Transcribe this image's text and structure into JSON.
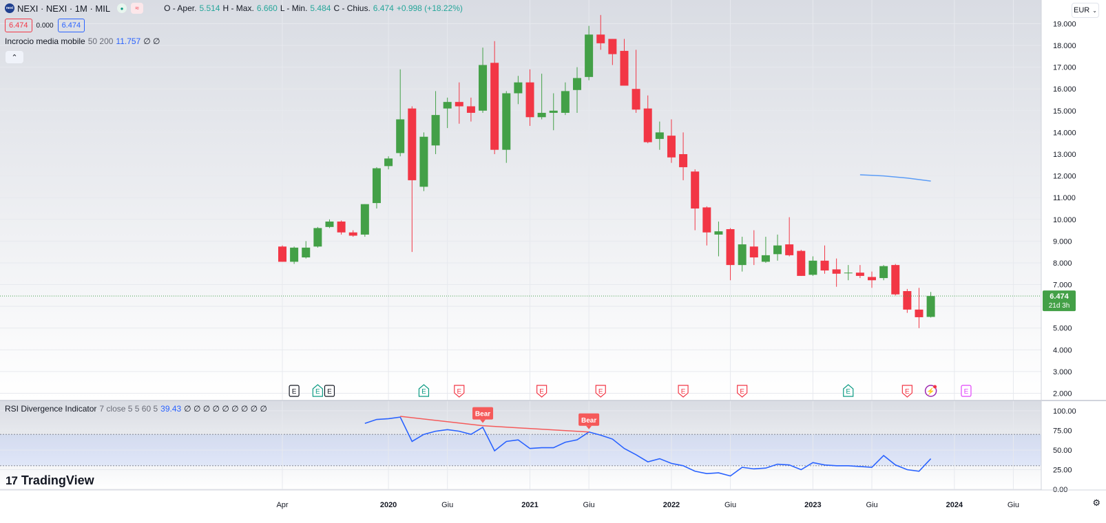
{
  "header": {
    "symbol_logo": "nexi",
    "title": "NEXI · NEXI · 1M · MIL",
    "ohlc": {
      "o_label": "O - Aper.",
      "o_val": "5.514",
      "h_label": "H - Max.",
      "h_val": "6.660",
      "l_label": "L - Min.",
      "l_val": "5.484",
      "c_label": "C - Chius.",
      "c_val": "6.474",
      "change": "+0.998 (+18.22%)"
    },
    "prices": {
      "bid": "6.474",
      "spread": "0.000",
      "ask": "6.474"
    },
    "currency": "EUR"
  },
  "indicators": {
    "ma_cross": {
      "name": "Incrocio media mobile",
      "params": "50 200",
      "value": "11.757",
      "extra": "∅ ∅"
    },
    "rsi": {
      "name": "RSI Divergence Indicator",
      "params": "7 close 5 5 60 5",
      "value": "39.43",
      "extra": "∅ ∅ ∅ ∅ ∅ ∅ ∅ ∅ ∅"
    }
  },
  "colors": {
    "up": "#43a047",
    "down": "#f23645",
    "ma": "#5b9cf6",
    "rsi": "#2962ff",
    "bear": "#f55a5a",
    "grid": "#e7e9ee"
  },
  "price_axis": {
    "last_price": "6.474",
    "countdown": "21d 3h"
  },
  "tv_brand": "TradingView",
  "chart_data": {
    "type": "candlestick",
    "title": "NEXI · NEXI · 1M · MIL",
    "price_ylim": [
      1.7,
      19.9
    ],
    "price_ticks": [
      "2.000",
      "3.000",
      "4.000",
      "5.000",
      "6.000",
      "7.000",
      "8.000",
      "9.000",
      "10.000",
      "11.000",
      "12.000",
      "13.000",
      "14.000",
      "15.000",
      "16.000",
      "17.000",
      "18.000",
      "19.000"
    ],
    "x_ticks": [
      "Apr",
      "2020",
      "Giu",
      "2021",
      "Giu",
      "2022",
      "Giu",
      "2023",
      "Giu",
      "2024",
      "Giu"
    ],
    "x_ticks_bold": [
      "2020",
      "2021",
      "2022",
      "2023",
      "2024"
    ],
    "x_ticks_month": [
      0,
      9,
      14,
      21,
      26,
      33,
      38,
      45,
      50,
      57,
      62
    ],
    "candles": [
      {
        "m": 0,
        "o": 8.75,
        "h": 8.8,
        "l": 8.05,
        "c": 8.05
      },
      {
        "m": 1,
        "o": 8.05,
        "h": 8.75,
        "l": 7.95,
        "c": 8.7
      },
      {
        "m": 2,
        "o": 8.25,
        "h": 9.0,
        "l": 8.2,
        "c": 8.7
      },
      {
        "m": 3,
        "o": 8.75,
        "h": 9.65,
        "l": 8.7,
        "c": 9.6
      },
      {
        "m": 4,
        "o": 9.65,
        "h": 10.0,
        "l": 9.6,
        "c": 9.9
      },
      {
        "m": 5,
        "o": 9.9,
        "h": 9.95,
        "l": 9.3,
        "c": 9.4
      },
      {
        "m": 6,
        "o": 9.4,
        "h": 9.5,
        "l": 9.2,
        "c": 9.25
      },
      {
        "m": 7,
        "o": 9.3,
        "h": 10.7,
        "l": 9.2,
        "c": 10.7
      },
      {
        "m": 8,
        "o": 10.75,
        "h": 12.4,
        "l": 10.5,
        "c": 12.35
      },
      {
        "m": 9,
        "o": 12.45,
        "h": 12.9,
        "l": 12.3,
        "c": 12.8
      },
      {
        "m": 10,
        "o": 13.05,
        "h": 16.9,
        "l": 12.9,
        "c": 14.6
      },
      {
        "m": 11,
        "o": 15.1,
        "h": 15.2,
        "l": 8.5,
        "c": 11.8
      },
      {
        "m": 12,
        "o": 11.5,
        "h": 14.0,
        "l": 11.3,
        "c": 13.8
      },
      {
        "m": 13,
        "o": 13.4,
        "h": 15.9,
        "l": 13.0,
        "c": 14.8
      },
      {
        "m": 14,
        "o": 15.1,
        "h": 15.6,
        "l": 14.2,
        "c": 15.4
      },
      {
        "m": 15,
        "o": 15.4,
        "h": 16.3,
        "l": 14.4,
        "c": 15.2
      },
      {
        "m": 16,
        "o": 15.2,
        "h": 15.6,
        "l": 14.5,
        "c": 14.9
      },
      {
        "m": 17,
        "o": 15.0,
        "h": 17.9,
        "l": 14.9,
        "c": 17.1
      },
      {
        "m": 18,
        "o": 17.2,
        "h": 18.2,
        "l": 13.0,
        "c": 13.2
      },
      {
        "m": 19,
        "o": 13.2,
        "h": 15.9,
        "l": 12.6,
        "c": 15.8
      },
      {
        "m": 20,
        "o": 15.8,
        "h": 16.6,
        "l": 15.3,
        "c": 16.3
      },
      {
        "m": 21,
        "o": 16.3,
        "h": 16.9,
        "l": 14.3,
        "c": 14.7
      },
      {
        "m": 22,
        "o": 14.7,
        "h": 16.7,
        "l": 14.6,
        "c": 14.9
      },
      {
        "m": 23,
        "o": 14.9,
        "h": 15.8,
        "l": 14.1,
        "c": 15.0
      },
      {
        "m": 24,
        "o": 14.9,
        "h": 16.3,
        "l": 14.8,
        "c": 15.9
      },
      {
        "m": 25,
        "o": 15.95,
        "h": 17.0,
        "l": 14.9,
        "c": 16.5
      },
      {
        "m": 26,
        "o": 16.55,
        "h": 18.9,
        "l": 16.4,
        "c": 18.5
      },
      {
        "m": 27,
        "o": 18.5,
        "h": 19.4,
        "l": 17.8,
        "c": 18.1
      },
      {
        "m": 28,
        "o": 18.3,
        "h": 18.3,
        "l": 17.1,
        "c": 17.6
      },
      {
        "m": 29,
        "o": 17.75,
        "h": 18.3,
        "l": 16.2,
        "c": 16.15
      },
      {
        "m": 30,
        "o": 16.0,
        "h": 17.8,
        "l": 14.9,
        "c": 15.05
      },
      {
        "m": 31,
        "o": 15.1,
        "h": 15.7,
        "l": 13.5,
        "c": 13.55
      },
      {
        "m": 32,
        "o": 13.7,
        "h": 14.5,
        "l": 13.2,
        "c": 14.0
      },
      {
        "m": 33,
        "o": 13.85,
        "h": 14.6,
        "l": 12.6,
        "c": 12.85
      },
      {
        "m": 34,
        "o": 13.0,
        "h": 14.0,
        "l": 11.8,
        "c": 12.4
      },
      {
        "m": 35,
        "o": 12.2,
        "h": 12.3,
        "l": 9.5,
        "c": 10.5
      },
      {
        "m": 36,
        "o": 10.55,
        "h": 10.6,
        "l": 8.8,
        "c": 9.4
      },
      {
        "m": 37,
        "o": 9.3,
        "h": 9.9,
        "l": 8.3,
        "c": 9.45
      },
      {
        "m": 38,
        "o": 9.55,
        "h": 9.6,
        "l": 7.2,
        "c": 7.9
      },
      {
        "m": 39,
        "o": 7.9,
        "h": 9.2,
        "l": 7.6,
        "c": 8.85
      },
      {
        "m": 40,
        "o": 8.75,
        "h": 9.5,
        "l": 7.9,
        "c": 8.25
      },
      {
        "m": 41,
        "o": 8.05,
        "h": 9.2,
        "l": 8.0,
        "c": 8.35
      },
      {
        "m": 42,
        "o": 8.4,
        "h": 9.3,
        "l": 8.1,
        "c": 8.8
      },
      {
        "m": 43,
        "o": 8.85,
        "h": 10.1,
        "l": 8.3,
        "c": 8.35
      },
      {
        "m": 44,
        "o": 8.55,
        "h": 8.6,
        "l": 7.4,
        "c": 7.4
      },
      {
        "m": 45,
        "o": 7.45,
        "h": 8.3,
        "l": 7.4,
        "c": 8.1
      },
      {
        "m": 46,
        "o": 8.1,
        "h": 8.8,
        "l": 7.5,
        "c": 7.65
      },
      {
        "m": 47,
        "o": 7.7,
        "h": 8.2,
        "l": 6.9,
        "c": 7.5
      },
      {
        "m": 48,
        "o": 7.55,
        "h": 7.9,
        "l": 7.2,
        "c": 7.55
      },
      {
        "m": 49,
        "o": 7.55,
        "h": 7.9,
        "l": 7.3,
        "c": 7.4
      },
      {
        "m": 50,
        "o": 7.35,
        "h": 7.6,
        "l": 6.85,
        "c": 7.2
      },
      {
        "m": 51,
        "o": 7.3,
        "h": 7.9,
        "l": 7.2,
        "c": 7.85
      },
      {
        "m": 52,
        "o": 7.9,
        "h": 7.95,
        "l": 6.5,
        "c": 6.55
      },
      {
        "m": 53,
        "o": 6.7,
        "h": 6.8,
        "l": 5.7,
        "c": 5.85
      },
      {
        "m": 54,
        "o": 5.85,
        "h": 6.85,
        "l": 5.0,
        "c": 5.5
      },
      {
        "m": 55,
        "o": 5.514,
        "h": 6.66,
        "l": 5.484,
        "c": 6.474
      }
    ],
    "ma_series": {
      "name": "Incrocio media mobile",
      "points": [
        [
          49,
          12.05
        ],
        [
          51,
          12.0
        ],
        [
          53,
          11.9
        ],
        [
          55,
          11.76
        ]
      ]
    },
    "last_price": 6.474,
    "earnings_markers": [
      {
        "m": 1,
        "type": "past-neutral",
        "label": "E"
      },
      {
        "m": 3,
        "type": "past-up",
        "label": "E"
      },
      {
        "m": 4,
        "type": "past-neutral",
        "label": "E"
      },
      {
        "m": 12,
        "type": "past-up",
        "label": "E"
      },
      {
        "m": 15,
        "type": "past-down",
        "label": "E"
      },
      {
        "m": 22,
        "type": "past-down",
        "label": "E"
      },
      {
        "m": 27,
        "type": "past-down",
        "label": "E"
      },
      {
        "m": 34,
        "type": "past-down",
        "label": "E"
      },
      {
        "m": 39,
        "type": "past-down",
        "label": "E"
      },
      {
        "m": 48,
        "type": "past-up",
        "label": "E"
      },
      {
        "m": 53,
        "type": "past-down",
        "label": "E"
      },
      {
        "m": 55,
        "type": "next",
        "label": "⚡"
      },
      {
        "m": 58,
        "type": "future",
        "label": "E"
      }
    ],
    "rsi": {
      "ylim": [
        0,
        100
      ],
      "ticks": [
        "0.00",
        "25.00",
        "50.00",
        "75.00",
        "100.00"
      ],
      "band": [
        30,
        70
      ],
      "midline": 50,
      "points": [
        [
          7,
          84
        ],
        [
          8,
          89
        ],
        [
          9,
          90
        ],
        [
          10,
          92
        ],
        [
          11,
          61
        ],
        [
          12,
          70
        ],
        [
          13,
          74
        ],
        [
          14,
          76
        ],
        [
          15,
          74
        ],
        [
          16,
          70
        ],
        [
          17,
          79
        ],
        [
          18,
          49
        ],
        [
          19,
          61
        ],
        [
          20,
          63
        ],
        [
          21,
          52
        ],
        [
          22,
          53
        ],
        [
          23,
          53
        ],
        [
          24,
          60
        ],
        [
          25,
          63
        ],
        [
          26,
          73
        ],
        [
          27,
          69
        ],
        [
          28,
          64
        ],
        [
          29,
          52
        ],
        [
          30,
          44
        ],
        [
          31,
          35
        ],
        [
          32,
          39
        ],
        [
          33,
          33
        ],
        [
          34,
          30
        ],
        [
          35,
          23
        ],
        [
          36,
          20
        ],
        [
          37,
          21
        ],
        [
          38,
          17
        ],
        [
          39,
          28
        ],
        [
          40,
          26
        ],
        [
          41,
          27
        ],
        [
          42,
          32
        ],
        [
          43,
          31
        ],
        [
          44,
          25
        ],
        [
          45,
          34
        ],
        [
          46,
          31
        ],
        [
          47,
          30
        ],
        [
          48,
          30
        ],
        [
          49,
          29
        ],
        [
          50,
          28
        ],
        [
          51,
          43
        ],
        [
          52,
          31
        ],
        [
          53,
          25
        ],
        [
          54,
          23
        ],
        [
          55,
          39
        ]
      ],
      "divergence_lines": [
        [
          [
            10,
            93
          ],
          [
            17,
            81
          ]
        ],
        [
          [
            17,
            81
          ],
          [
            26,
            73
          ]
        ]
      ],
      "labels": [
        {
          "m": 17,
          "v": 81,
          "text": "Bear"
        },
        {
          "m": 26,
          "v": 73,
          "text": "Bear"
        }
      ]
    }
  }
}
